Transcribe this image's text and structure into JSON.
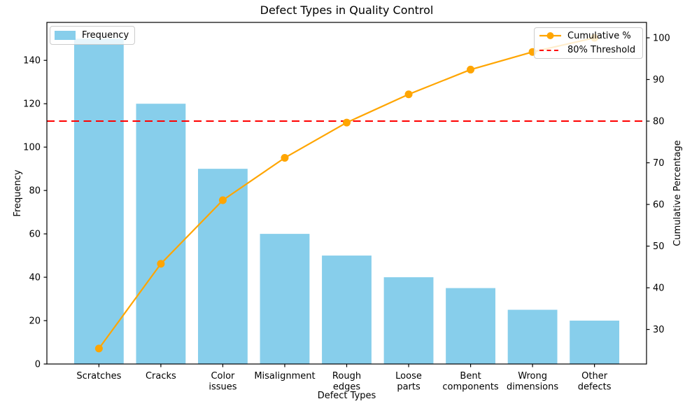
{
  "chart_data": {
    "type": "bar+line (pareto)",
    "title": "Defect Types in Quality Control",
    "xlabel": "Defect Types",
    "ylabel_left": "Frequency",
    "ylabel_right": "Cumulative Percentage",
    "categories": [
      "Scratches",
      "Cracks",
      "Color issues",
      "Misalignment",
      "Rough edges",
      "Loose parts",
      "Bent components",
      "Wrong dimensions",
      "Other defects"
    ],
    "category_tick_lines": [
      [
        "Scratches"
      ],
      [
        "Cracks"
      ],
      [
        "Color",
        "issues"
      ],
      [
        "Misalignment"
      ],
      [
        "Rough",
        "edges"
      ],
      [
        "Loose",
        "parts"
      ],
      [
        "Bent",
        "components"
      ],
      [
        "Wrong",
        "dimensions"
      ],
      [
        "Other",
        "defects"
      ]
    ],
    "bar_series": {
      "name": "Frequency",
      "color": "#87CEEB",
      "values": [
        150,
        120,
        90,
        60,
        50,
        40,
        35,
        25,
        20
      ]
    },
    "line_series": {
      "name": "Cumulative %",
      "color": "#FFA500",
      "values": [
        25.42,
        45.76,
        61.02,
        71.19,
        79.66,
        86.44,
        92.37,
        96.61,
        100.0
      ]
    },
    "threshold": {
      "name": "80% Threshold",
      "color": "#FF0000",
      "value_pct": 80,
      "style": "dashed"
    },
    "ylim_left": [
      0,
      157.5
    ],
    "yticks_left": [
      0,
      20,
      40,
      60,
      80,
      100,
      120,
      140
    ],
    "ylim_right": [
      21.7,
      103.7
    ],
    "yticks_right": [
      30,
      40,
      50,
      60,
      70,
      80,
      90,
      100
    ],
    "xlim": [
      -0.84,
      8.84
    ],
    "bar_width_units": 0.8,
    "grid": "off",
    "legend_left_position": "upper left",
    "legend_right_position": "upper right",
    "axis_color": "#000000"
  }
}
